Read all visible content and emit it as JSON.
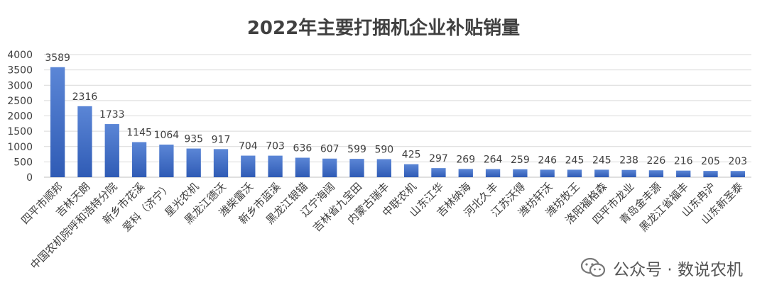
{
  "chart_data": {
    "type": "bar",
    "title": "2022年主要打捆机企业补贴销量",
    "xlabel": "",
    "ylabel": "",
    "ylim": [
      0,
      4000
    ],
    "yticks": [
      0,
      500,
      1000,
      1500,
      2000,
      2500,
      3000,
      3500,
      4000
    ],
    "grid": true,
    "legend": "none",
    "categories": [
      "四平市顺邦",
      "吉林天朗",
      "中国农机院呼和浩特分院",
      "新乡市花溪",
      "爱科（济宁）",
      "星光农机",
      "黑龙江德沃",
      "潍柴雷沃",
      "新乡市蓝溪",
      "黑龙江银锚",
      "辽宁海阔",
      "吉林省九宝田",
      "内蒙古瑞丰",
      "中联农机",
      "山东江华",
      "吉林纳海",
      "河北久丰",
      "江苏沃得",
      "潍坊轩沃",
      "潍坊牧王",
      "洛阳福格森",
      "四平市龙业",
      "青岛金丰源",
      "黑龙江省福丰",
      "山东冉沪",
      "山东新圣泰"
    ],
    "values": [
      3589,
      2316,
      1733,
      1145,
      1064,
      935,
      917,
      704,
      703,
      636,
      607,
      599,
      590,
      425,
      297,
      269,
      264,
      259,
      246,
      245,
      245,
      238,
      226,
      216,
      205,
      203
    ],
    "colors": {
      "bar_top": "#5b86d6",
      "bar_bottom": "#2f5bb5",
      "grid": "#d9d9d9",
      "text": "#404040",
      "title": "#404040"
    }
  },
  "watermark": {
    "text": "公众号 · 数说农机",
    "icon": "wechat-icon"
  }
}
